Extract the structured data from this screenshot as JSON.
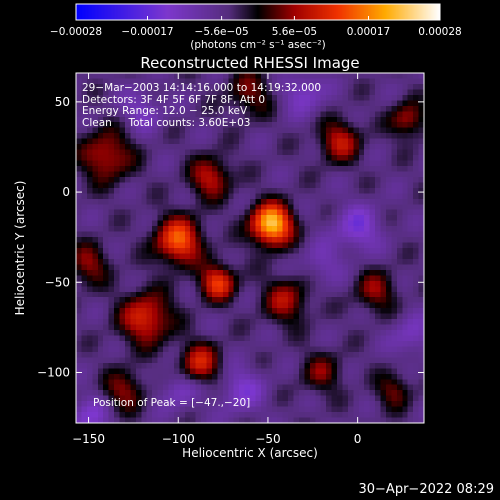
{
  "chart_data": {
    "type": "heatmap",
    "title": "Reconstructed RHESSI Image",
    "xlabel": "Heliocentric X (arcsec)",
    "ylabel": "Heliocentric Y (arcsec)",
    "xlim": [
      -157,
      37
    ],
    "ylim": [
      -128,
      66
    ],
    "xticks": [
      -150,
      -100,
      -50,
      0
    ],
    "yticks": [
      -100,
      -50,
      0,
      50
    ],
    "xtick_labels": [
      "−150",
      "−100",
      "−50",
      "0"
    ],
    "ytick_labels": [
      "−100",
      "−50",
      "0",
      "50"
    ],
    "colorbar": {
      "range": [
        -0.00028,
        0.00028
      ],
      "tick_labels": [
        "−0.00028",
        "−0.00017",
        "−5.6e−05",
        "5.6e−05",
        "0.00017",
        "0.00028"
      ],
      "tick_values": [
        -0.00028,
        -0.00017,
        -5.6e-05,
        5.6e-05,
        0.00017,
        0.00028
      ],
      "unit_label": "(photons cm⁻² s⁻¹ asec⁻²)"
    },
    "peak": [
      -47,
      -20
    ],
    "blobs": [
      {
        "x": -48,
        "y": -18,
        "sigma": 8,
        "amp": 1.0
      },
      {
        "x": -100,
        "y": -27,
        "sigma": 9,
        "amp": 0.7
      },
      {
        "x": -78,
        "y": -50,
        "sigma": 7,
        "amp": 0.6
      },
      {
        "x": -118,
        "y": -70,
        "sigma": 10,
        "amp": 0.55
      },
      {
        "x": -140,
        "y": 20,
        "sigma": 10,
        "amp": 0.45
      },
      {
        "x": -82,
        "y": 8,
        "sigma": 8,
        "amp": 0.45
      },
      {
        "x": -88,
        "y": -95,
        "sigma": 8,
        "amp": 0.5
      },
      {
        "x": -10,
        "y": 28,
        "sigma": 8,
        "amp": 0.45
      },
      {
        "x": -40,
        "y": -60,
        "sigma": 9,
        "amp": 0.4
      },
      {
        "x": 28,
        "y": 40,
        "sigma": 7,
        "amp": 0.4
      },
      {
        "x": 10,
        "y": -55,
        "sigma": 8,
        "amp": 0.35
      },
      {
        "x": -60,
        "y": 55,
        "sigma": 9,
        "amp": 0.3
      },
      {
        "x": -130,
        "y": -110,
        "sigma": 8,
        "amp": 0.35
      },
      {
        "x": -20,
        "y": -100,
        "sigma": 8,
        "amp": 0.3
      },
      {
        "x": 20,
        "y": -110,
        "sigma": 7,
        "amp": 0.3
      },
      {
        "x": -150,
        "y": -40,
        "sigma": 8,
        "amp": 0.35
      },
      {
        "x": 0,
        "y": -20,
        "sigma": 9,
        "amp": -0.35
      },
      {
        "x": -30,
        "y": 55,
        "sigma": 8,
        "amp": -0.3
      },
      {
        "x": -120,
        "y": 45,
        "sigma": 8,
        "amp": -0.25
      },
      {
        "x": -65,
        "y": -110,
        "sigma": 9,
        "amp": -0.3
      },
      {
        "x": -100,
        "y": -110,
        "sigma": 8,
        "amp": -0.25
      },
      {
        "x": -150,
        "y": -125,
        "sigma": 8,
        "amp": -0.3
      },
      {
        "x": 30,
        "y": -80,
        "sigma": 8,
        "amp": -0.25
      },
      {
        "x": -20,
        "y": -40,
        "sigma": 8,
        "amp": -0.2
      }
    ]
  },
  "overlay": {
    "time_range": "29−Mar−2003 14:14:16.000 to 14:19:32.000",
    "detectors": "Detectors: 3F 4F 5F 6F 7F 8F, Att 0",
    "energy": "Energy Range: 12.0 − 25.0 keV",
    "method": "Clean     Total counts: 3.60E+03",
    "peak": "Position of Peak = [−47.,−20]"
  },
  "footer": "30−Apr−2022 08:29",
  "colors": {
    "background": "#000000",
    "axis": "#ffffff"
  }
}
